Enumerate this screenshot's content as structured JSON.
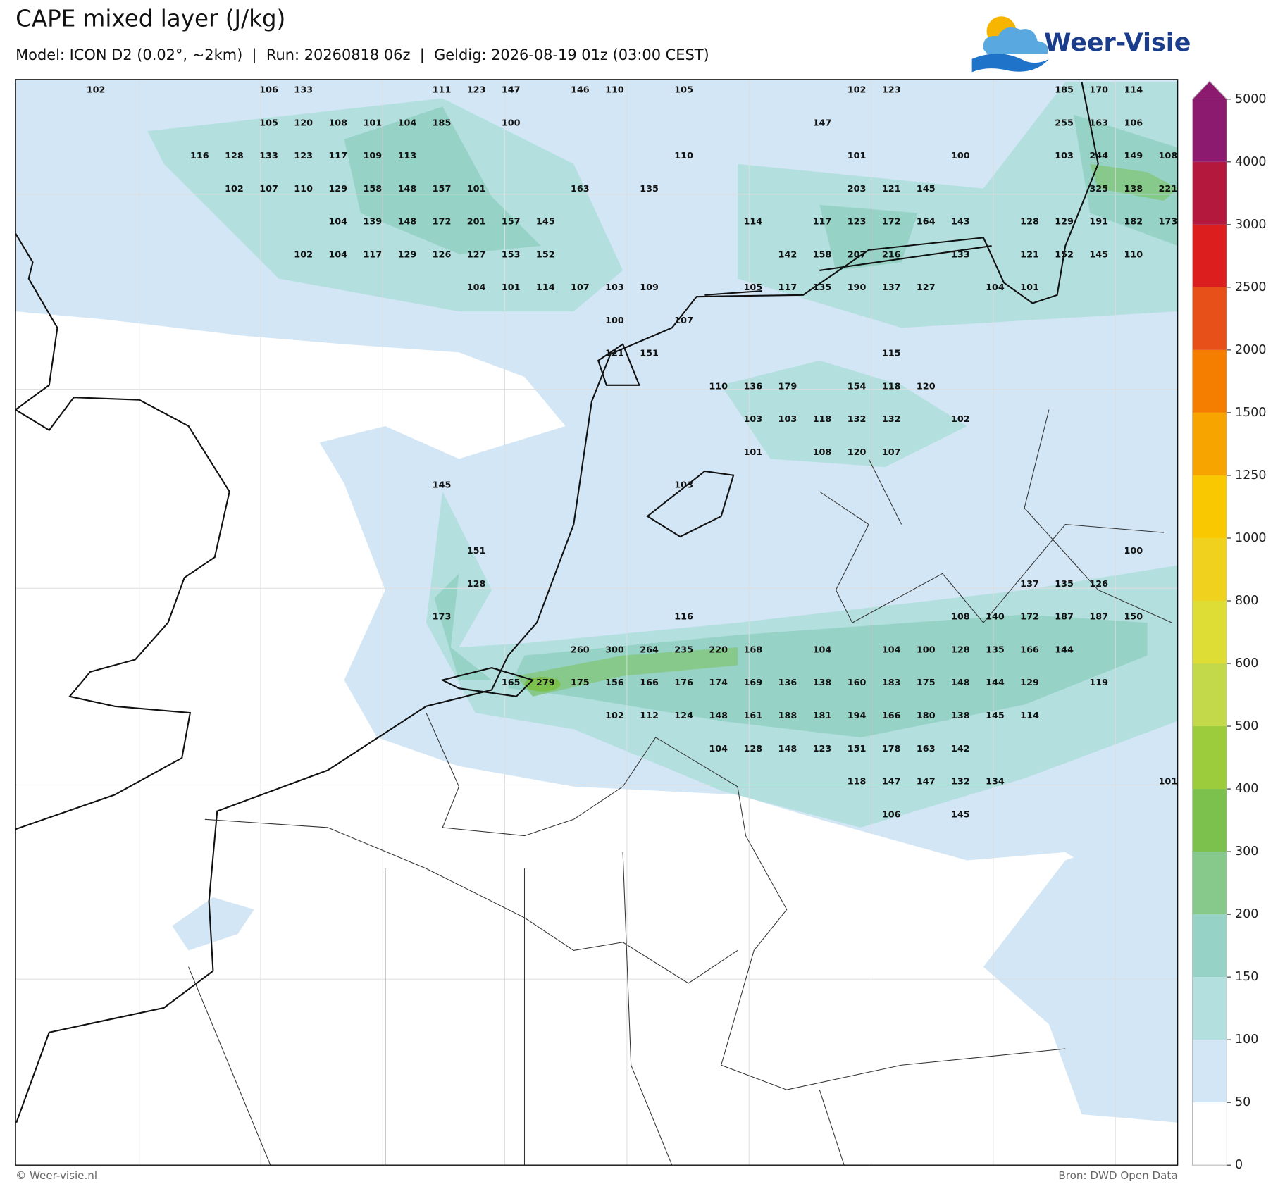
{
  "header": {
    "title": "CAPE mixed layer (J/kg)",
    "subtitle": "Model: ICON D2 (0.02°, ~2km)  |  Run: 20260818 06z  |  Geldig: 2026-08-19 01z (03:00 CEST)"
  },
  "logo": "Weer-Visie",
  "map_labels": {
    "rows": [
      [
        102,
        null,
        null,
        null,
        null,
        106,
        133,
        null,
        null,
        null,
        111,
        123,
        147,
        null,
        146,
        110,
        null,
        105,
        null,
        null,
        null,
        null,
        102,
        123,
        null,
        null,
        null,
        null,
        185,
        170,
        114,
        null
      ],
      [
        null,
        null,
        null,
        null,
        null,
        105,
        120,
        108,
        101,
        104,
        185,
        null,
        100,
        null,
        null,
        null,
        null,
        null,
        null,
        null,
        null,
        147,
        null,
        null,
        null,
        null,
        null,
        null,
        255,
        163,
        106,
        null
      ],
      [
        null,
        null,
        null,
        116,
        128,
        133,
        123,
        117,
        109,
        113,
        null,
        null,
        null,
        null,
        null,
        null,
        null,
        110,
        null,
        null,
        null,
        null,
        101,
        null,
        null,
        100,
        null,
        null,
        103,
        244,
        149,
        108
      ],
      [
        null,
        null,
        null,
        null,
        102,
        107,
        110,
        129,
        158,
        148,
        157,
        101,
        null,
        null,
        163,
        null,
        135,
        null,
        null,
        null,
        null,
        null,
        203,
        121,
        145,
        null,
        null,
        null,
        null,
        325,
        138,
        221
      ],
      [
        null,
        null,
        null,
        null,
        null,
        null,
        null,
        104,
        139,
        148,
        172,
        201,
        157,
        145,
        null,
        null,
        null,
        null,
        null,
        114,
        null,
        117,
        123,
        172,
        164,
        143,
        null,
        128,
        129,
        191,
        182,
        173
      ],
      [
        null,
        null,
        null,
        null,
        null,
        null,
        102,
        104,
        117,
        129,
        126,
        127,
        153,
        152,
        null,
        null,
        null,
        null,
        null,
        null,
        142,
        158,
        207,
        216,
        null,
        133,
        null,
        121,
        152,
        145,
        110,
        null
      ],
      [
        null,
        null,
        null,
        null,
        null,
        null,
        null,
        null,
        null,
        null,
        null,
        104,
        101,
        114,
        107,
        103,
        109,
        null,
        null,
        105,
        117,
        135,
        190,
        137,
        127,
        null,
        104,
        101,
        null,
        null,
        null,
        null
      ],
      [
        null,
        null,
        null,
        null,
        null,
        null,
        null,
        null,
        null,
        null,
        null,
        null,
        null,
        null,
        null,
        100,
        null,
        107,
        null,
        null,
        null,
        null,
        null,
        null,
        null,
        null,
        null,
        null,
        null,
        null,
        null,
        null
      ],
      [
        null,
        null,
        null,
        null,
        null,
        null,
        null,
        null,
        null,
        null,
        null,
        null,
        null,
        null,
        null,
        121,
        151,
        null,
        null,
        null,
        null,
        null,
        null,
        115,
        null,
        null,
        null,
        null,
        null,
        null,
        null,
        null
      ],
      [
        null,
        null,
        null,
        null,
        null,
        null,
        null,
        null,
        null,
        null,
        null,
        null,
        null,
        null,
        null,
        null,
        null,
        null,
        110,
        136,
        179,
        null,
        154,
        118,
        120,
        null,
        null,
        null,
        null,
        null,
        null,
        null
      ],
      [
        null,
        null,
        null,
        null,
        null,
        null,
        null,
        null,
        null,
        null,
        null,
        null,
        null,
        null,
        null,
        null,
        null,
        null,
        null,
        103,
        103,
        118,
        132,
        132,
        null,
        102,
        null,
        null,
        null,
        null,
        null,
        null
      ],
      [
        null,
        null,
        null,
        null,
        null,
        null,
        null,
        null,
        null,
        null,
        null,
        null,
        null,
        null,
        null,
        null,
        null,
        null,
        null,
        101,
        null,
        108,
        120,
        107,
        null,
        null,
        null,
        null,
        null,
        null,
        null,
        null
      ],
      [
        null,
        null,
        null,
        null,
        null,
        null,
        null,
        null,
        null,
        null,
        145,
        null,
        null,
        null,
        null,
        null,
        null,
        103,
        null,
        null,
        null,
        null,
        null,
        null,
        null,
        null,
        null,
        null,
        null,
        null,
        null,
        null
      ],
      [
        null,
        null,
        null,
        null,
        null,
        null,
        null,
        null,
        null,
        null,
        null,
        null,
        null,
        null,
        null,
        null,
        null,
        null,
        null,
        null,
        null,
        null,
        null,
        null,
        null,
        null,
        null,
        null,
        null,
        null,
        null,
        null
      ],
      [
        null,
        null,
        null,
        null,
        null,
        null,
        null,
        null,
        null,
        null,
        null,
        151,
        null,
        null,
        null,
        null,
        null,
        null,
        null,
        null,
        null,
        null,
        null,
        null,
        null,
        null,
        null,
        null,
        null,
        null,
        100,
        null
      ],
      [
        null,
        null,
        null,
        null,
        null,
        null,
        null,
        null,
        null,
        null,
        null,
        128,
        null,
        null,
        null,
        null,
        null,
        null,
        null,
        null,
        null,
        null,
        null,
        null,
        null,
        null,
        null,
        137,
        135,
        126,
        null,
        null
      ],
      [
        null,
        null,
        null,
        null,
        null,
        null,
        null,
        null,
        null,
        null,
        173,
        null,
        null,
        null,
        null,
        null,
        null,
        116,
        null,
        null,
        null,
        null,
        null,
        null,
        null,
        108,
        140,
        172,
        187,
        187,
        150,
        null
      ],
      [
        null,
        null,
        null,
        null,
        null,
        null,
        null,
        null,
        null,
        null,
        null,
        null,
        null,
        null,
        260,
        300,
        264,
        235,
        220,
        168,
        null,
        104,
        null,
        104,
        100,
        128,
        135,
        166,
        144,
        null,
        null,
        null
      ],
      [
        null,
        null,
        null,
        null,
        null,
        null,
        null,
        null,
        null,
        null,
        null,
        null,
        165,
        279,
        175,
        156,
        166,
        176,
        174,
        169,
        136,
        138,
        160,
        183,
        175,
        148,
        144,
        129,
        null,
        119,
        null,
        null
      ],
      [
        null,
        null,
        null,
        null,
        null,
        null,
        null,
        null,
        null,
        null,
        null,
        null,
        null,
        null,
        null,
        102,
        112,
        124,
        148,
        161,
        188,
        181,
        194,
        166,
        180,
        138,
        145,
        114,
        null,
        null,
        null,
        null
      ],
      [
        null,
        null,
        null,
        null,
        null,
        null,
        null,
        null,
        null,
        null,
        null,
        null,
        null,
        null,
        null,
        null,
        null,
        null,
        104,
        128,
        148,
        123,
        151,
        178,
        163,
        142,
        null,
        null,
        null,
        null,
        null,
        null
      ],
      [
        null,
        null,
        null,
        null,
        null,
        null,
        null,
        null,
        null,
        null,
        null,
        null,
        null,
        null,
        null,
        null,
        null,
        null,
        null,
        null,
        null,
        null,
        118,
        147,
        147,
        132,
        134,
        null,
        null,
        null,
        null,
        101
      ],
      [
        null,
        null,
        null,
        null,
        null,
        null,
        null,
        null,
        null,
        null,
        null,
        null,
        null,
        null,
        null,
        null,
        null,
        null,
        null,
        null,
        null,
        null,
        null,
        106,
        null,
        145,
        null,
        null,
        null,
        null,
        null,
        null
      ]
    ]
  },
  "colorbar": {
    "levels": [
      0,
      50,
      100,
      150,
      200,
      300,
      400,
      500,
      600,
      800,
      1000,
      1250,
      1500,
      2000,
      2500,
      3000,
      4000,
      5000
    ],
    "colors": [
      "#ffffff",
      "#d2e6f5",
      "#b4dfdf",
      "#96d2c6",
      "#87c98a",
      "#7cc04e",
      "#9ccc3c",
      "#c4d94a",
      "#dddd35",
      "#f0d21e",
      "#fac800",
      "#f8a400",
      "#f57d00",
      "#e8501a",
      "#dc1e1e",
      "#b4183c",
      "#8c1a6e"
    ]
  },
  "footer": {
    "left": "© Weer-visie.nl",
    "right": "Bron: DWD Open Data"
  }
}
